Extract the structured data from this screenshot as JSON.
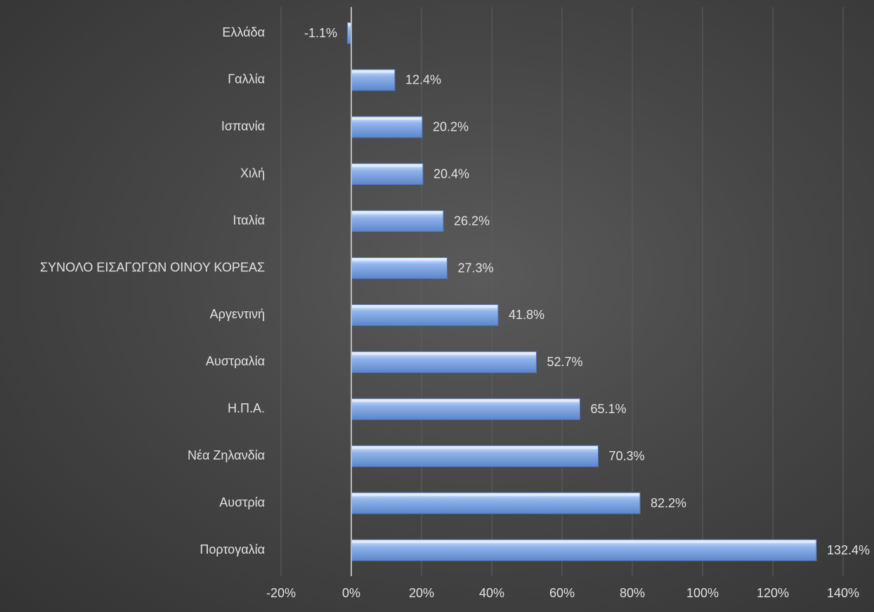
{
  "chart_data": {
    "type": "bar",
    "orientation": "horizontal",
    "title": "",
    "xlabel": "",
    "ylabel": "",
    "categories": [
      "Ελλάδα",
      "Γαλλία",
      "Ισπανία",
      "Χιλή",
      "Ιταλία",
      "ΣΥΝΟΛΟ ΕΙΣΑΓΩΓΩΝ ΟΙΝΟΥ ΚΟΡΕΑΣ",
      "Αργεντινή",
      "Αυστραλία",
      "Η.Π.Α.",
      "Νέα Ζηλανδία",
      "Αυστρία",
      "Πορτογαλία"
    ],
    "values": [
      -1.1,
      12.4,
      20.2,
      20.4,
      26.2,
      27.3,
      41.8,
      52.7,
      65.1,
      70.3,
      82.2,
      132.4
    ],
    "data_labels": [
      "-1.1%",
      "12.4%",
      "20.2%",
      "20.4%",
      "26.2%",
      "27.3%",
      "41.8%",
      "52.7%",
      "65.1%",
      "70.3%",
      "82.2%",
      "132.4%"
    ],
    "xlim": [
      -20,
      140
    ],
    "x_ticks": [
      -20,
      0,
      20,
      40,
      60,
      80,
      100,
      120,
      140
    ],
    "x_tick_labels": [
      "-20%",
      "0%",
      "20%",
      "40%",
      "60%",
      "80%",
      "100%",
      "120%",
      "140%"
    ],
    "grid": "vertical",
    "legend": "none",
    "colors": {
      "bar_top": "#dce8fb",
      "bar_mid": "#8fb2ea",
      "bar_bottom": "#5b86cc",
      "gridline": "#5e5e5e",
      "zero_axis": "#bcbcbc",
      "text": "#e2e2e2"
    }
  }
}
